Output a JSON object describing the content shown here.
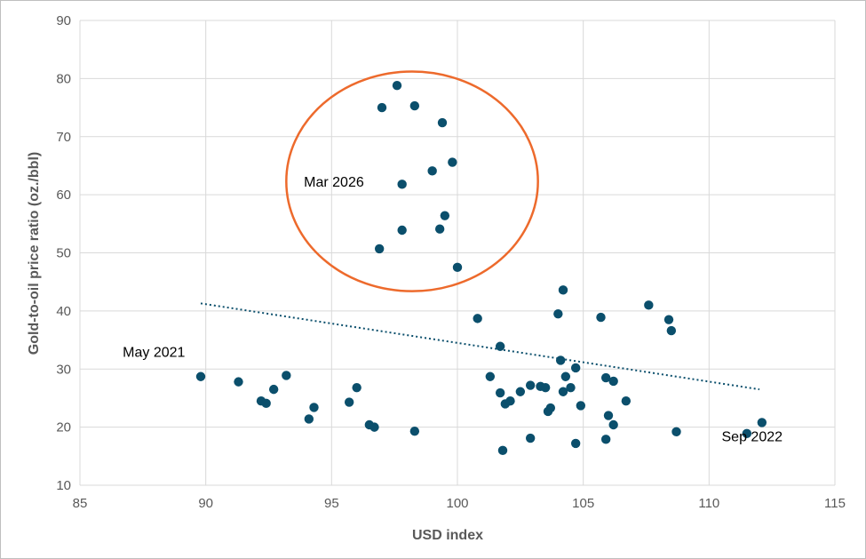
{
  "chart_data": {
    "type": "scatter",
    "title": "",
    "xlabel": "USD index",
    "ylabel": "Gold-to-oil price ratio (oz./bbl)",
    "xlim": [
      85,
      115
    ],
    "ylim": [
      10,
      90
    ],
    "xticks": [
      85,
      90,
      95,
      100,
      105,
      110,
      115
    ],
    "yticks": [
      10,
      20,
      30,
      40,
      50,
      60,
      70,
      80,
      90
    ],
    "grid": true,
    "legend": "none",
    "colors": {
      "points": "#0b4f6c",
      "highlight_ellipse": "#ed6a2c",
      "trendline": "#0b4f6c",
      "grid": "#d9d9d9"
    },
    "series": [
      {
        "x": [
          89.8,
          91.3,
          92.2,
          92.4,
          92.7,
          93.2,
          94.1,
          94.3,
          95.7,
          96.0,
          96.5,
          96.7,
          98.3,
          100.8,
          101.3,
          101.7,
          101.7,
          101.8,
          101.9,
          102.1,
          102.5,
          102.9,
          102.9,
          103.3,
          103.5,
          103.6,
          103.7,
          104.0,
          104.1,
          104.2,
          104.2,
          104.3,
          104.5,
          104.7,
          104.7,
          104.9,
          105.7,
          105.9,
          105.9,
          106.0,
          106.2,
          106.2,
          106.7,
          107.6,
          108.4,
          108.5,
          108.7,
          111.5,
          112.1,
          96.9,
          97.0,
          97.6,
          97.8,
          97.8,
          98.3,
          99.0,
          99.3,
          99.4,
          99.5,
          99.8,
          100.0
        ],
        "y": [
          28.7,
          27.8,
          24.5,
          24.1,
          26.5,
          28.9,
          21.4,
          23.4,
          24.3,
          26.8,
          20.4,
          20.0,
          19.3,
          38.7,
          28.7,
          33.9,
          25.9,
          16.0,
          24.0,
          24.5,
          26.1,
          27.2,
          18.1,
          27.0,
          26.8,
          22.7,
          23.3,
          39.5,
          31.5,
          26.1,
          43.6,
          28.7,
          26.8,
          30.2,
          17.2,
          23.7,
          38.9,
          28.5,
          17.9,
          22.0,
          20.4,
          27.9,
          24.5,
          41.0,
          38.5,
          36.6,
          19.2,
          18.9,
          20.8,
          50.7,
          75.0,
          78.8,
          61.8,
          53.9,
          75.3,
          64.1,
          54.1,
          72.4,
          56.4,
          65.6,
          47.5
        ]
      }
    ],
    "trendline": {
      "style": "dotted",
      "x": [
        89.8,
        112.0
      ],
      "y": [
        41.3,
        26.5
      ]
    },
    "annotations": [
      {
        "text": "May 2021",
        "x": 86.7,
        "y": 33.0
      },
      {
        "text": "Mar 2026",
        "x": 93.9,
        "y": 62.3
      },
      {
        "text": "Sep 2022",
        "x": 110.5,
        "y": 18.5
      }
    ],
    "highlight": {
      "shape": "ellipse",
      "cx": 98.2,
      "cy": 62.3,
      "rx": 5.0,
      "ry": 18.9
    }
  }
}
